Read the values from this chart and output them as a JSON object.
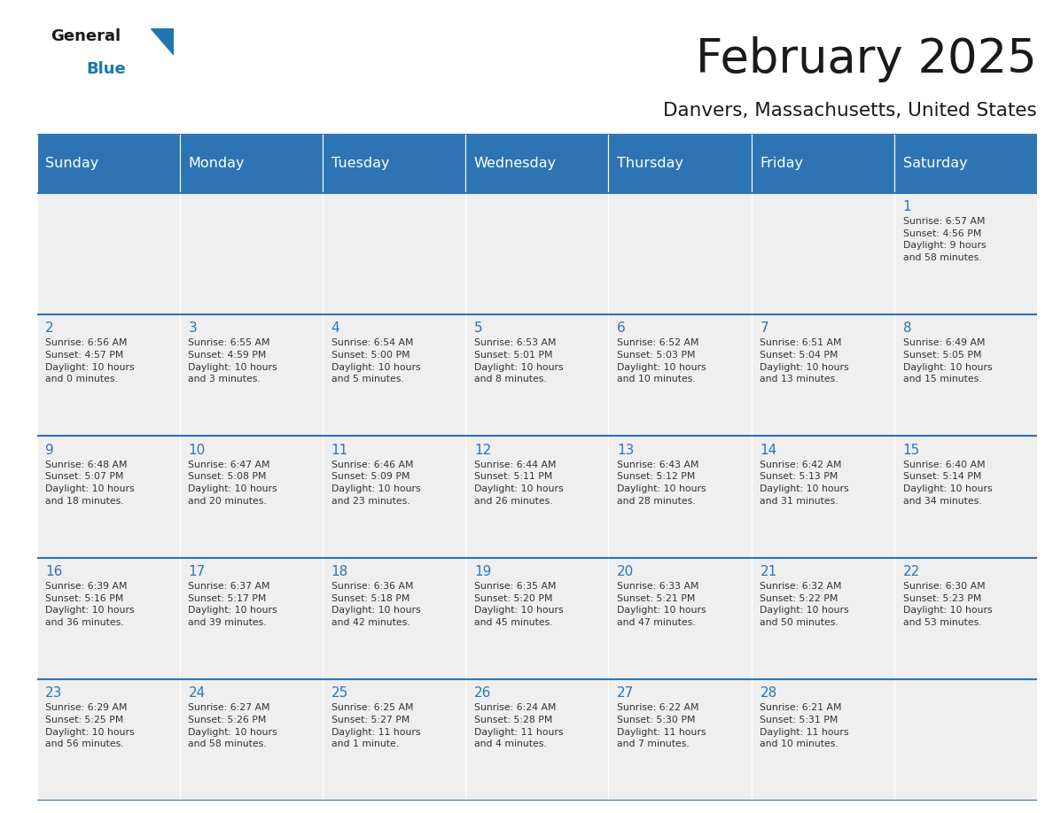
{
  "title": "February 2025",
  "subtitle": "Danvers, Massachusetts, United States",
  "days_of_week": [
    "Sunday",
    "Monday",
    "Tuesday",
    "Wednesday",
    "Thursday",
    "Friday",
    "Saturday"
  ],
  "header_bg": "#2E74B5",
  "header_text": "#FFFFFF",
  "cell_bg_light": "#EFEFEF",
  "cell_bg_white": "#FFFFFF",
  "title_color": "#1A1A1A",
  "subtitle_color": "#1A1A1A",
  "text_color": "#333333",
  "day_num_color": "#2E74B5",
  "border_color": "#2E74B5",
  "logo_text_color": "#1A1A1A",
  "logo_blue_color": "#2176AE",
  "weeks": [
    [
      {
        "day": null,
        "sunrise": null,
        "sunset": null,
        "daylight_hours": null,
        "daylight_mins": null
      },
      {
        "day": null,
        "sunrise": null,
        "sunset": null,
        "daylight_hours": null,
        "daylight_mins": null
      },
      {
        "day": null,
        "sunrise": null,
        "sunset": null,
        "daylight_hours": null,
        "daylight_mins": null
      },
      {
        "day": null,
        "sunrise": null,
        "sunset": null,
        "daylight_hours": null,
        "daylight_mins": null
      },
      {
        "day": null,
        "sunrise": null,
        "sunset": null,
        "daylight_hours": null,
        "daylight_mins": null
      },
      {
        "day": null,
        "sunrise": null,
        "sunset": null,
        "daylight_hours": null,
        "daylight_mins": null
      },
      {
        "day": 1,
        "sunrise": "6:57 AM",
        "sunset": "4:56 PM",
        "daylight_hours": 9,
        "daylight_mins": 58
      }
    ],
    [
      {
        "day": 2,
        "sunrise": "6:56 AM",
        "sunset": "4:57 PM",
        "daylight_hours": 10,
        "daylight_mins": 0
      },
      {
        "day": 3,
        "sunrise": "6:55 AM",
        "sunset": "4:59 PM",
        "daylight_hours": 10,
        "daylight_mins": 3
      },
      {
        "day": 4,
        "sunrise": "6:54 AM",
        "sunset": "5:00 PM",
        "daylight_hours": 10,
        "daylight_mins": 5
      },
      {
        "day": 5,
        "sunrise": "6:53 AM",
        "sunset": "5:01 PM",
        "daylight_hours": 10,
        "daylight_mins": 8
      },
      {
        "day": 6,
        "sunrise": "6:52 AM",
        "sunset": "5:03 PM",
        "daylight_hours": 10,
        "daylight_mins": 10
      },
      {
        "day": 7,
        "sunrise": "6:51 AM",
        "sunset": "5:04 PM",
        "daylight_hours": 10,
        "daylight_mins": 13
      },
      {
        "day": 8,
        "sunrise": "6:49 AM",
        "sunset": "5:05 PM",
        "daylight_hours": 10,
        "daylight_mins": 15
      }
    ],
    [
      {
        "day": 9,
        "sunrise": "6:48 AM",
        "sunset": "5:07 PM",
        "daylight_hours": 10,
        "daylight_mins": 18
      },
      {
        "day": 10,
        "sunrise": "6:47 AM",
        "sunset": "5:08 PM",
        "daylight_hours": 10,
        "daylight_mins": 20
      },
      {
        "day": 11,
        "sunrise": "6:46 AM",
        "sunset": "5:09 PM",
        "daylight_hours": 10,
        "daylight_mins": 23
      },
      {
        "day": 12,
        "sunrise": "6:44 AM",
        "sunset": "5:11 PM",
        "daylight_hours": 10,
        "daylight_mins": 26
      },
      {
        "day": 13,
        "sunrise": "6:43 AM",
        "sunset": "5:12 PM",
        "daylight_hours": 10,
        "daylight_mins": 28
      },
      {
        "day": 14,
        "sunrise": "6:42 AM",
        "sunset": "5:13 PM",
        "daylight_hours": 10,
        "daylight_mins": 31
      },
      {
        "day": 15,
        "sunrise": "6:40 AM",
        "sunset": "5:14 PM",
        "daylight_hours": 10,
        "daylight_mins": 34
      }
    ],
    [
      {
        "day": 16,
        "sunrise": "6:39 AM",
        "sunset": "5:16 PM",
        "daylight_hours": 10,
        "daylight_mins": 36
      },
      {
        "day": 17,
        "sunrise": "6:37 AM",
        "sunset": "5:17 PM",
        "daylight_hours": 10,
        "daylight_mins": 39
      },
      {
        "day": 18,
        "sunrise": "6:36 AM",
        "sunset": "5:18 PM",
        "daylight_hours": 10,
        "daylight_mins": 42
      },
      {
        "day": 19,
        "sunrise": "6:35 AM",
        "sunset": "5:20 PM",
        "daylight_hours": 10,
        "daylight_mins": 45
      },
      {
        "day": 20,
        "sunrise": "6:33 AM",
        "sunset": "5:21 PM",
        "daylight_hours": 10,
        "daylight_mins": 47
      },
      {
        "day": 21,
        "sunrise": "6:32 AM",
        "sunset": "5:22 PM",
        "daylight_hours": 10,
        "daylight_mins": 50
      },
      {
        "day": 22,
        "sunrise": "6:30 AM",
        "sunset": "5:23 PM",
        "daylight_hours": 10,
        "daylight_mins": 53
      }
    ],
    [
      {
        "day": 23,
        "sunrise": "6:29 AM",
        "sunset": "5:25 PM",
        "daylight_hours": 10,
        "daylight_mins": 56
      },
      {
        "day": 24,
        "sunrise": "6:27 AM",
        "sunset": "5:26 PM",
        "daylight_hours": 10,
        "daylight_mins": 58
      },
      {
        "day": 25,
        "sunrise": "6:25 AM",
        "sunset": "5:27 PM",
        "daylight_hours": 11,
        "daylight_mins": 1
      },
      {
        "day": 26,
        "sunrise": "6:24 AM",
        "sunset": "5:28 PM",
        "daylight_hours": 11,
        "daylight_mins": 4
      },
      {
        "day": 27,
        "sunrise": "6:22 AM",
        "sunset": "5:30 PM",
        "daylight_hours": 11,
        "daylight_mins": 7
      },
      {
        "day": 28,
        "sunrise": "6:21 AM",
        "sunset": "5:31 PM",
        "daylight_hours": 11,
        "daylight_mins": 10
      },
      {
        "day": null,
        "sunrise": null,
        "sunset": null,
        "daylight_hours": null,
        "daylight_mins": null
      }
    ]
  ]
}
